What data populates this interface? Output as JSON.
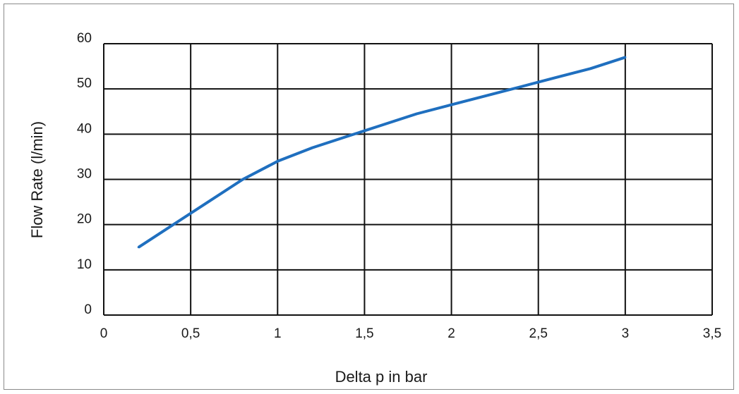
{
  "chart_data": {
    "type": "line",
    "title": "",
    "xlabel": "Delta p in bar",
    "ylabel": "Flow Rate  (l/min)",
    "xlim": [
      0,
      3.5
    ],
    "ylim": [
      0,
      60
    ],
    "xticks": [
      0,
      0.5,
      1,
      1.5,
      2,
      2.5,
      3,
      3.5
    ],
    "xtick_labels": [
      "0",
      "0,5",
      "1",
      "1,5",
      "2",
      "2,5",
      "3",
      "3,5"
    ],
    "yticks": [
      0,
      10,
      20,
      30,
      40,
      50,
      60
    ],
    "ytick_labels": [
      "0",
      "10",
      "20",
      "30",
      "40",
      "50",
      "60"
    ],
    "grid": true,
    "legend": "none",
    "series": [
      {
        "color": "#1f6fbf",
        "x": [
          0.2,
          0.4,
          0.6,
          0.8,
          1.0,
          1.2,
          1.4,
          1.6,
          1.8,
          2.0,
          2.2,
          2.4,
          2.6,
          2.8,
          3.0
        ],
        "y": [
          15,
          20,
          25,
          30,
          34,
          37,
          39.5,
          42,
          44.5,
          46.5,
          48.5,
          50.5,
          52.5,
          54.5,
          57
        ]
      }
    ]
  }
}
